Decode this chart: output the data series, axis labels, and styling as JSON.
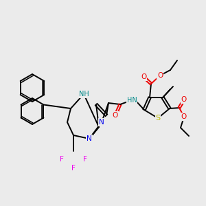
{
  "bg_color": "#ebebeb",
  "atom_colors": {
    "N": "#0000ee",
    "O": "#ee0000",
    "S": "#bbbb00",
    "F": "#ee00ee",
    "H_label": "#008888",
    "C": "#000000"
  }
}
